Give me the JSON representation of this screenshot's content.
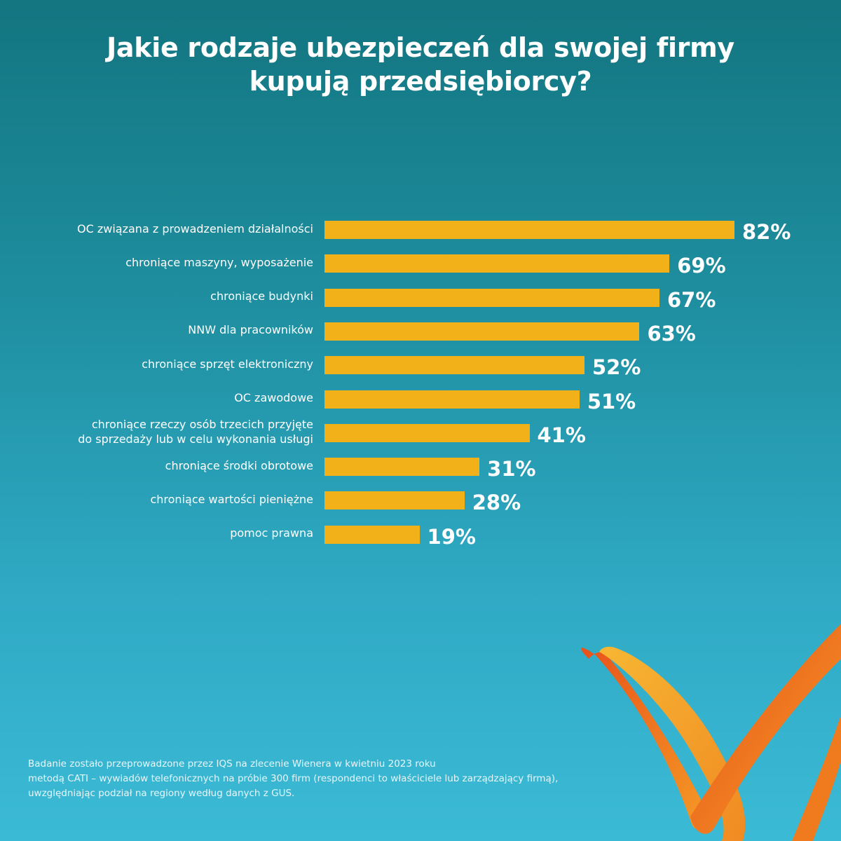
{
  "title": {
    "line1": "Jakie rodzaje ubezpieczeń dla swojej firmy",
    "line2": "kupują przedsiębiorcy?"
  },
  "chart_data": {
    "type": "bar",
    "orientation": "horizontal",
    "title": "Jakie rodzaje ubezpieczeń dla swojej firmy kupują przedsiębiorcy?",
    "categories": [
      "OC związana z prowadzeniem działalności",
      "chroniące maszyny, wyposażenie",
      "chroniące budynki",
      "NNW dla pracowników",
      "chroniące sprzęt elektroniczny",
      "OC zawodowe",
      "chroniące rzeczy osób trzecich przyjęte do sprzedaży lub w celu wykonania usługi",
      "chroniące środki obrotowe",
      "chroniące wartości pieniężne",
      "pomoc prawna"
    ],
    "category_lines": [
      [
        "OC związana z prowadzeniem działalności"
      ],
      [
        "chroniące maszyny, wyposażenie"
      ],
      [
        "chroniące budynki"
      ],
      [
        "NNW dla pracowników"
      ],
      [
        "chroniące sprzęt elektroniczny"
      ],
      [
        "OC zawodowe"
      ],
      [
        "chroniące rzeczy osób trzecich przyjęte",
        "do sprzedaży lub w celu wykonania usługi"
      ],
      [
        "chroniące środki obrotowe"
      ],
      [
        "chroniące wartości pieniężne"
      ],
      [
        "pomoc prawna"
      ]
    ],
    "values": [
      82,
      69,
      67,
      63,
      52,
      51,
      41,
      31,
      28,
      19
    ],
    "value_labels": [
      "82%",
      "69%",
      "67%",
      "63%",
      "52%",
      "51%",
      "41%",
      "31%",
      "28%",
      "19%"
    ],
    "unit": "%",
    "xlim": [
      0,
      82
    ],
    "grid": false,
    "bar_color": "#f2b019"
  },
  "footnote": {
    "line1": "Badanie zostało przeprowadzone przez IQS na zlecenie Wienera w kwietniu 2023 roku",
    "line2": "metodą CATI – wywiadów telefonicznych na próbie 300 firm (respondenci to właściciele lub zarządzający firmą),",
    "line3": "uwzględniając podział na regiony według danych z GUS."
  },
  "colors": {
    "background_top": "#137580",
    "background_bottom": "#3bbad6",
    "logo_orange": "#f07a1e",
    "logo_yellow": "#f7a823"
  },
  "logo": {
    "icon": "wiener-ribbon-logo-icon"
  }
}
